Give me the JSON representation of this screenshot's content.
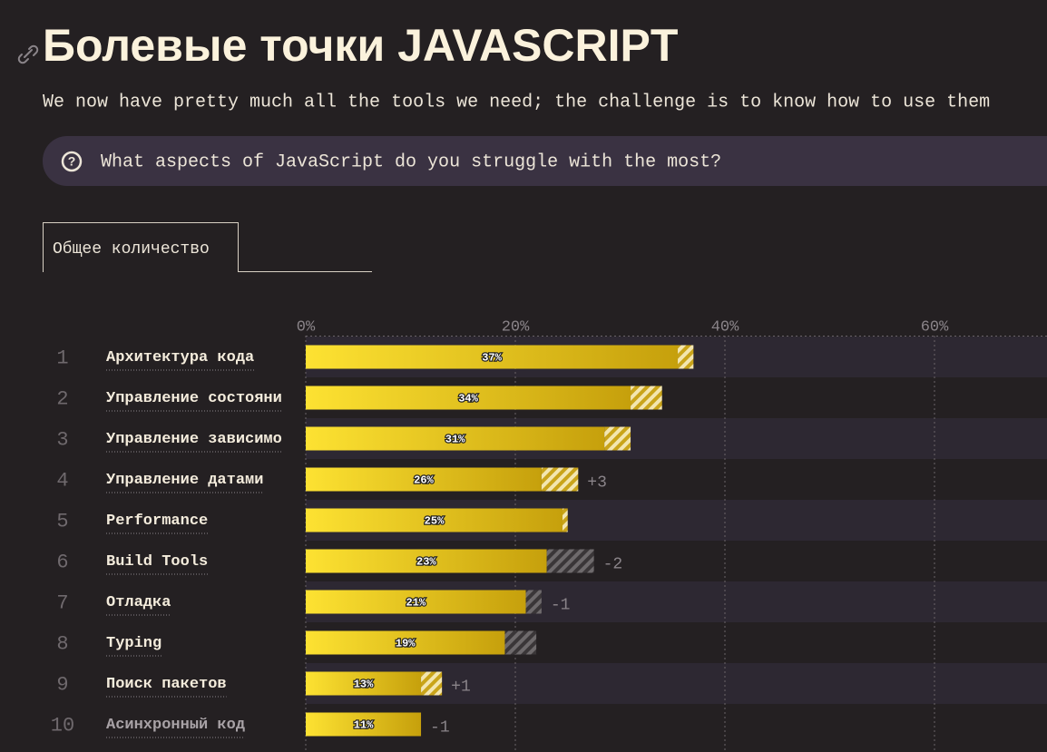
{
  "title": "Болевые точки JAVASCRIPT",
  "subtitle": "We now have pretty much all the tools we need; the challenge is to know how to use them",
  "question": "What aspects of JavaScript do you struggle with the most?",
  "tab": "Общее количество",
  "chart_data": {
    "type": "bar",
    "orientation": "horizontal",
    "ranks": [
      1,
      2,
      3,
      4,
      5,
      6,
      7,
      8,
      9,
      10
    ],
    "categories": [
      "Архитектура кода",
      "Управление состояни",
      "Управление зависимо",
      "Управление датами",
      "Performance",
      "Build Tools",
      "Отладка",
      "Typing",
      "Поиск пакетов",
      "Асинхронный код"
    ],
    "values": [
      37,
      34,
      31,
      26,
      25,
      23,
      21,
      19,
      13,
      11
    ],
    "value_labels": [
      "37%",
      "34%",
      "31%",
      "26%",
      "25%",
      "23%",
      "21%",
      "19%",
      "13%",
      "11%"
    ],
    "previous_values": [
      35.5,
      31,
      28.5,
      22.5,
      24.5,
      27.5,
      22.5,
      22,
      11,
      null
    ],
    "rank_changes": [
      null,
      null,
      null,
      "+3",
      null,
      "-2",
      "-1",
      null,
      "+1",
      "-1"
    ],
    "xlim": [
      0,
      70
    ],
    "xticks": [
      {
        "value": 0,
        "label": "0%"
      },
      {
        "value": 20,
        "label": "20%"
      },
      {
        "value": 40,
        "label": "40%"
      },
      {
        "value": 60,
        "label": "60%"
      }
    ],
    "color": "#f5d21c",
    "increase_color": "#e8d47a",
    "decrease_color": "#6e6a6c",
    "grid": true
  }
}
